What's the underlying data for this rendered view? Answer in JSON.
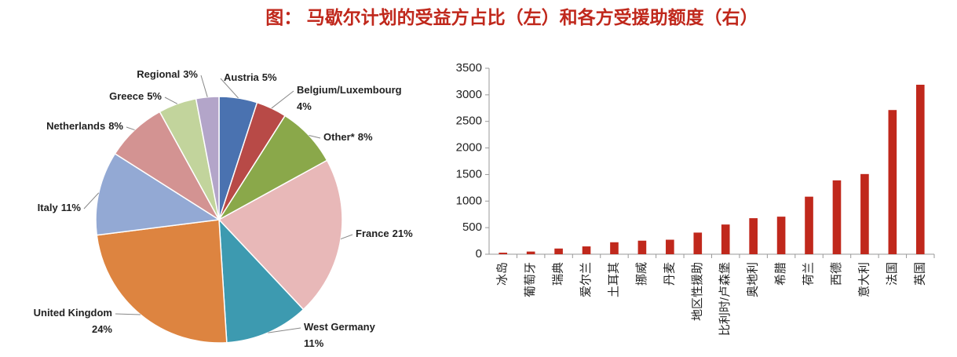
{
  "title": "图： 马歇尔计划的受益方占比（左）和各方受援助额度（右）",
  "chart_data": [
    {
      "type": "pie",
      "categories": [
        "Austria",
        "Belgium/Luxembourg",
        "Other*",
        "France",
        "West Germany",
        "United Kingdom",
        "Italy",
        "Netherlands",
        "Greece",
        "Regional"
      ],
      "values": [
        5,
        4,
        8,
        21,
        11,
        24,
        11,
        8,
        5,
        3
      ],
      "value_labels": [
        "5%",
        "4%",
        "8%",
        "21%",
        "11%",
        "24%",
        "11%",
        "8%",
        "5%",
        "3%"
      ],
      "colors": [
        "#4a72b0",
        "#b84a47",
        "#8aa84a",
        "#e8b8b8",
        "#3d9ab0",
        "#dd8440",
        "#93a9d4",
        "#d39392",
        "#c2d49c",
        "#b3a5c9"
      ]
    },
    {
      "type": "bar",
      "categories": [
        "冰岛",
        "葡萄牙",
        "瑞典",
        "爱尔兰",
        "土耳其",
        "挪威",
        "丹麦",
        "地区性援助",
        "比利时/卢森堡",
        "奥地利",
        "希腊",
        "荷兰",
        "西德",
        "意大利",
        "法国",
        "英国"
      ],
      "values": [
        29,
        50,
        107,
        147,
        225,
        255,
        273,
        407,
        559,
        678,
        707,
        1083,
        1390,
        1509,
        2714,
        3190
      ],
      "color": "#c0281c",
      "ylim": [
        0,
        3500
      ],
      "yticks": [
        0,
        500,
        1000,
        1500,
        2000,
        2500,
        3000,
        3500
      ]
    }
  ]
}
